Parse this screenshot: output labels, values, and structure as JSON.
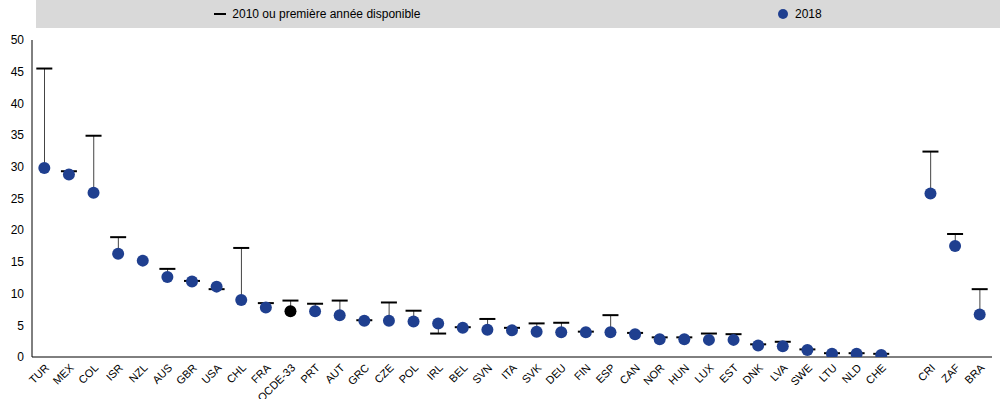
{
  "chart_data": {
    "type": "dot",
    "categories": [
      "TUR",
      "MEX",
      "COL",
      "ISR",
      "NZL",
      "AUS",
      "GBR",
      "USA",
      "CHL",
      "FRA",
      "OCDE-33",
      "PRT",
      "AUT",
      "GRC",
      "CZE",
      "POL",
      "IRL",
      "BEL",
      "SVN",
      "ITA",
      "SVK",
      "DEU",
      "FIN",
      "ESP",
      "CAN",
      "NOR",
      "HUN",
      "LUX",
      "EST",
      "DNK",
      "LVA",
      "SWE",
      "LTU",
      "NLD",
      "CHE",
      null,
      "CRI",
      "ZAF",
      "BRA"
    ],
    "series": [
      {
        "name": "2010 ou première année disponible",
        "color": "#000000",
        "marker": "dash",
        "values": [
          45.5,
          29.3,
          34.9,
          18.9,
          null,
          13.9,
          12.0,
          10.7,
          17.2,
          8.5,
          8.9,
          8.4,
          8.9,
          5.8,
          8.6,
          7.3,
          3.7,
          4.7,
          6.0,
          4.6,
          5.3,
          5.4,
          4.0,
          6.6,
          3.8,
          3.1,
          3.1,
          3.7,
          3.6,
          2.0,
          2.4,
          1.2,
          0.6,
          0.6,
          0.5,
          null,
          32.4,
          19.4,
          10.7
        ]
      },
      {
        "name": "2018",
        "color": "#1f3f8f",
        "marker": "circle",
        "colors": [
          "#1f3f8f",
          "#1f3f8f",
          "#1f3f8f",
          "#1f3f8f",
          "#1f3f8f",
          "#1f3f8f",
          "#1f3f8f",
          "#1f3f8f",
          "#1f3f8f",
          "#1f3f8f",
          "#000000",
          "#1f3f8f",
          "#1f3f8f",
          "#1f3f8f",
          "#1f3f8f",
          "#1f3f8f",
          "#1f3f8f",
          "#1f3f8f",
          "#1f3f8f",
          "#1f3f8f",
          "#1f3f8f",
          "#1f3f8f",
          "#1f3f8f",
          "#1f3f8f",
          "#1f3f8f",
          "#1f3f8f",
          "#1f3f8f",
          "#1f3f8f",
          "#1f3f8f",
          "#1f3f8f",
          "#1f3f8f",
          "#1f3f8f",
          "#1f3f8f",
          "#1f3f8f",
          "#1f3f8f",
          "#1f3f8f",
          "#1f3f8f",
          "#1f3f8f",
          "#1f3f8f"
        ],
        "values": [
          29.8,
          28.8,
          25.9,
          16.3,
          15.2,
          12.6,
          11.9,
          11.1,
          9.0,
          7.8,
          7.2,
          7.2,
          6.6,
          5.7,
          5.7,
          5.6,
          5.3,
          4.6,
          4.3,
          4.2,
          4.0,
          3.9,
          3.9,
          3.9,
          3.6,
          2.8,
          2.8,
          2.7,
          2.7,
          1.8,
          1.7,
          1.1,
          0.5,
          0.5,
          0.3,
          null,
          25.8,
          17.5,
          6.7
        ]
      }
    ],
    "ylim": [
      0,
      50
    ],
    "yticks": [
      0,
      5,
      10,
      15,
      20,
      25,
      30,
      35,
      40,
      45,
      50
    ],
    "grid": false,
    "legend": "top"
  }
}
